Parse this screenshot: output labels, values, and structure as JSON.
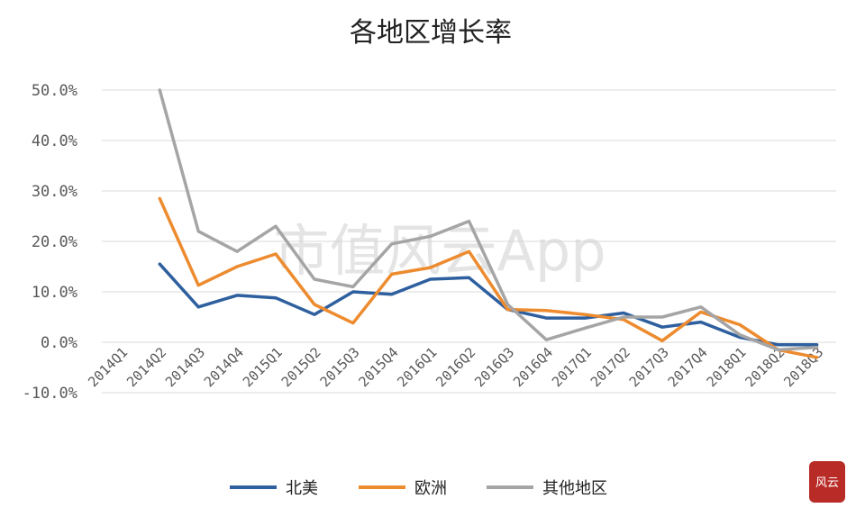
{
  "chart_data": {
    "type": "line",
    "title": "各地区增长率",
    "xlabel": "",
    "ylabel": "",
    "categories": [
      "2014Q1",
      "2014Q2",
      "2014Q3",
      "2014Q4",
      "2015Q1",
      "2015Q2",
      "2015Q3",
      "2015Q4",
      "2016Q1",
      "2016Q2",
      "2016Q3",
      "2016Q4",
      "2017Q1",
      "2017Q2",
      "2017Q3",
      "2017Q4",
      "2018Q1",
      "2018Q2",
      "2018Q3"
    ],
    "ylim": [
      -10,
      50
    ],
    "yticks": [
      50,
      40,
      30,
      20,
      10,
      0,
      -10
    ],
    "ytick_labels": [
      "50.0%",
      "40.0%",
      "30.0%",
      "20.0%",
      "10.0%",
      "0.0%",
      "-10.0%"
    ],
    "grid": true,
    "legend_position": "bottom",
    "series": [
      {
        "name": "北美",
        "color": "#2E5F9E",
        "values": [
          null,
          15.5,
          7.0,
          9.3,
          8.8,
          5.5,
          10.0,
          9.5,
          12.5,
          12.8,
          6.5,
          4.8,
          4.8,
          5.8,
          3.0,
          4.0,
          1.0,
          -0.5,
          -0.5
        ]
      },
      {
        "name": "欧洲",
        "color": "#ED8B2F",
        "values": [
          null,
          28.5,
          11.3,
          15.0,
          17.5,
          7.5,
          3.8,
          13.5,
          14.8,
          18.0,
          6.5,
          6.3,
          5.5,
          4.5,
          0.3,
          6.0,
          3.5,
          -1.5,
          -3.0
        ]
      },
      {
        "name": "其他地区",
        "color": "#A5A5A5",
        "values": [
          null,
          50.0,
          22.0,
          18.0,
          23.0,
          12.5,
          11.0,
          19.5,
          21.0,
          24.0,
          7.5,
          0.5,
          2.8,
          5.0,
          5.0,
          7.0,
          1.5,
          -1.5,
          -1.0
        ]
      }
    ]
  },
  "watermark": {
    "text": "市值风云App"
  },
  "seal": {
    "text": "风云"
  }
}
